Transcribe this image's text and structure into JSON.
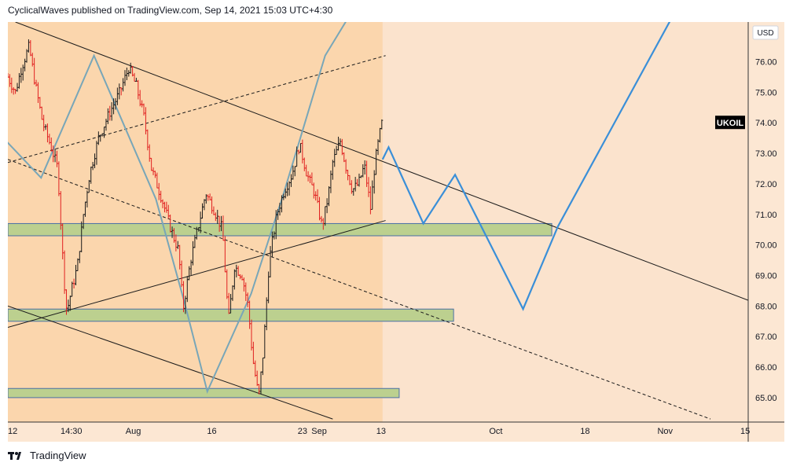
{
  "header": {
    "text": "CyclicalWaves published on TradingView.com, Sep 14, 2021 15:03 UTC+4:30"
  },
  "footer": {
    "brand": "TradingView",
    "logo_icon": "tradingview-logo-icon"
  },
  "colors": {
    "background": "#ffffff",
    "plot_bg": "#fbe3cd",
    "history_bg": "#fbd6ad",
    "axis_bg": "#fce7d3",
    "blue_path": "#3a8fd8",
    "history_blue": "#78a6b8",
    "zone_fill": "#bcd08f",
    "zone_stroke": "#4a6fa5",
    "candle_up": "#1a1a1a",
    "candle_down": "#e02020",
    "symbol_label_bg": "#000000",
    "symbol_label_text": "#ffffff"
  },
  "chart_data": {
    "type": "candlestick",
    "symbol": "UKOIL",
    "currency": "USD",
    "last_price": 74.0,
    "ylim": [
      64.2,
      77.3
    ],
    "y_ticks": [
      65.0,
      66.0,
      67.0,
      68.0,
      69.0,
      70.0,
      71.0,
      72.0,
      73.0,
      74.0,
      75.0,
      76.0
    ],
    "y_tick_labels": [
      "65.00",
      "66.00",
      "67.00",
      "68.00",
      "69.00",
      "70.00",
      "71.00",
      "72.00",
      "73.00",
      "74.00",
      "75.00",
      "76.00"
    ],
    "x_index_range": [
      0,
      49
    ],
    "x_ticks": [
      {
        "idx": 0,
        "label": "12"
      },
      {
        "idx": 4.2,
        "label": "14:30"
      },
      {
        "idx": 8.3,
        "label": "Aug"
      },
      {
        "idx": 13.5,
        "label": "16"
      },
      {
        "idx": 19.5,
        "label": "23"
      },
      {
        "idx": 20.6,
        "label": "Sep"
      },
      {
        "idx": 24.7,
        "label": "13"
      },
      {
        "idx": 32.3,
        "label": "Oct"
      },
      {
        "idx": 38.2,
        "label": "18"
      },
      {
        "idx": 43.5,
        "label": "Nov"
      },
      {
        "idx": 48.8,
        "label": "15"
      }
    ],
    "history_end_idx": 24.8,
    "price_anchors": [
      [
        0,
        75.5
      ],
      [
        0.5,
        75.0
      ],
      [
        0.9,
        75.8
      ],
      [
        1.4,
        76.5
      ],
      [
        1.8,
        75.3
      ],
      [
        2.3,
        74.0
      ],
      [
        2.8,
        73.3
      ],
      [
        3.3,
        72.5
      ],
      [
        3.7,
        69.0
      ],
      [
        3.9,
        67.8
      ],
      [
        4.2,
        68.5
      ],
      [
        4.6,
        69.3
      ],
      [
        5.0,
        71.0
      ],
      [
        5.4,
        72.3
      ],
      [
        6.0,
        73.5
      ],
      [
        6.7,
        74.3
      ],
      [
        7.4,
        75.0
      ],
      [
        8.0,
        75.8
      ],
      [
        8.5,
        75.2
      ],
      [
        9.0,
        74.2
      ],
      [
        9.5,
        72.5
      ],
      [
        10.2,
        71.5
      ],
      [
        10.8,
        70.5
      ],
      [
        11.3,
        69.8
      ],
      [
        11.6,
        67.9
      ],
      [
        12.1,
        69.5
      ],
      [
        12.6,
        70.6
      ],
      [
        13.1,
        71.7
      ],
      [
        13.6,
        71.2
      ],
      [
        14.2,
        70.5
      ],
      [
        14.6,
        67.5
      ],
      [
        15.0,
        69.3
      ],
      [
        15.5,
        69.0
      ],
      [
        15.9,
        68.0
      ],
      [
        16.2,
        66.3
      ],
      [
        16.6,
        65.0
      ],
      [
        16.9,
        66.5
      ],
      [
        17.3,
        69.5
      ],
      [
        17.8,
        71.0
      ],
      [
        18.3,
        71.8
      ],
      [
        18.8,
        72.3
      ],
      [
        19.3,
        73.3
      ],
      [
        19.8,
        72.3
      ],
      [
        20.3,
        71.7
      ],
      [
        20.8,
        70.6
      ],
      [
        21.2,
        71.6
      ],
      [
        21.5,
        72.7
      ],
      [
        22.0,
        73.4
      ],
      [
        22.4,
        72.5
      ],
      [
        22.8,
        71.8
      ],
      [
        23.2,
        72.0
      ],
      [
        23.6,
        72.6
      ],
      [
        24.0,
        71.2
      ],
      [
        24.3,
        72.7
      ],
      [
        24.6,
        73.6
      ],
      [
        24.8,
        74.1
      ]
    ],
    "history_zigzag": [
      [
        -0.3,
        73.5
      ],
      [
        2.2,
        72.2
      ],
      [
        5.7,
        76.2
      ],
      [
        9.8,
        71.5
      ],
      [
        11.7,
        68.1
      ],
      [
        13.2,
        65.2
      ],
      [
        16.1,
        68.4
      ],
      [
        18.2,
        71.6
      ],
      [
        21.0,
        76.2
      ],
      [
        22.6,
        77.5
      ]
    ],
    "projection_path": [
      [
        24.8,
        72.8
      ],
      [
        25.2,
        73.2
      ],
      [
        27.5,
        70.7
      ],
      [
        29.6,
        72.3
      ],
      [
        34.1,
        67.9
      ],
      [
        36.4,
        70.6
      ],
      [
        43.9,
        77.4
      ]
    ],
    "trend_lines": [
      {
        "style": "solid",
        "points": [
          [
            0.5,
            77.3
          ],
          [
            50,
            68.0
          ]
        ]
      },
      {
        "style": "dashed",
        "points": [
          [
            0,
            72.8
          ],
          [
            46.5,
            64.3
          ]
        ]
      },
      {
        "style": "dashed",
        "points": [
          [
            0,
            72.7
          ],
          [
            25.0,
            76.2
          ]
        ]
      },
      {
        "style": "solid",
        "points": [
          [
            0,
            68.0
          ],
          [
            21.5,
            64.3
          ]
        ]
      },
      {
        "style": "solid",
        "points": [
          [
            0,
            67.3
          ],
          [
            25.0,
            70.8
          ]
        ]
      }
    ],
    "zones": [
      {
        "x_start": 0,
        "x_end": 36.0,
        "y_low": 70.3,
        "y_high": 70.7
      },
      {
        "x_start": 0,
        "x_end": 29.5,
        "y_low": 67.5,
        "y_high": 67.9
      },
      {
        "x_start": 0,
        "x_end": 25.9,
        "y_low": 65.0,
        "y_high": 65.3
      }
    ]
  }
}
